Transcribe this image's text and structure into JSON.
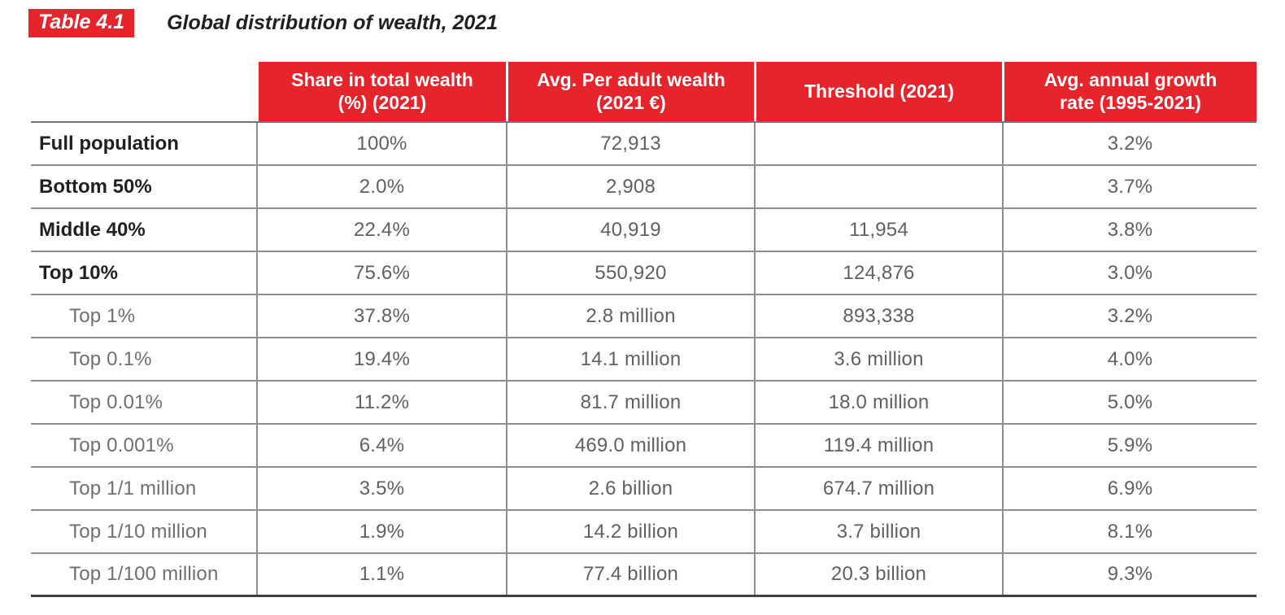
{
  "title": {
    "badge": "Table 4.1",
    "text": "Global distribution of wealth, 2021"
  },
  "colors": {
    "accent_red": "#E5242C",
    "header_text": "#FFFFFF",
    "bold_label_text": "#231F20",
    "value_text": "#5F6063",
    "sub_label_text": "#6E6F72",
    "row_border": "#8E8E8E",
    "table_bottom_border": "#404040"
  },
  "table": {
    "columns": [
      "",
      "Share in total wealth (%) (2021)",
      "Avg. Per adult wealth (2021 €)",
      "Threshold (2021)",
      "Avg. annual growth rate (1995-2021)"
    ],
    "rows": [
      {
        "label": "Full population",
        "share": "100%",
        "avg": "72,913",
        "threshold": "",
        "growth": "3.2%"
      },
      {
        "label": "Bottom 50%",
        "share": "2.0%",
        "avg": "2,908",
        "threshold": "",
        "growth": "3.7%"
      },
      {
        "label": "Middle 40%",
        "share": "22.4%",
        "avg": "40,919",
        "threshold": "11,954",
        "growth": "3.8%"
      },
      {
        "label": "Top 10%",
        "share": "75.6%",
        "avg": "550,920",
        "threshold": "124,876",
        "growth": "3.0%"
      },
      {
        "label": "Top 1%",
        "share": "37.8%",
        "avg": "2.8 million",
        "threshold": "893,338",
        "growth": "3.2%"
      },
      {
        "label": "Top 0.1%",
        "share": "19.4%",
        "avg": "14.1 million",
        "threshold": "3.6 million",
        "growth": "4.0%"
      },
      {
        "label": "Top 0.01%",
        "share": "11.2%",
        "avg": "81.7 million",
        "threshold": "18.0 million",
        "growth": "5.0%"
      },
      {
        "label": "Top 0.001%",
        "share": "6.4%",
        "avg": "469.0 million",
        "threshold": "119.4 million",
        "growth": "5.9%"
      },
      {
        "label": "Top 1/1 million",
        "share": "3.5%",
        "avg": "2.6 billion",
        "threshold": "674.7 million",
        "growth": "6.9%"
      },
      {
        "label": "Top 1/10 million",
        "share": "1.9%",
        "avg": "14.2 billion",
        "threshold": "3.7 billion",
        "growth": "8.1%"
      },
      {
        "label": "Top 1/100 million",
        "share": "1.1%",
        "avg": "77.4 billion",
        "threshold": "20.3 billion",
        "growth": "9.3%"
      }
    ]
  }
}
